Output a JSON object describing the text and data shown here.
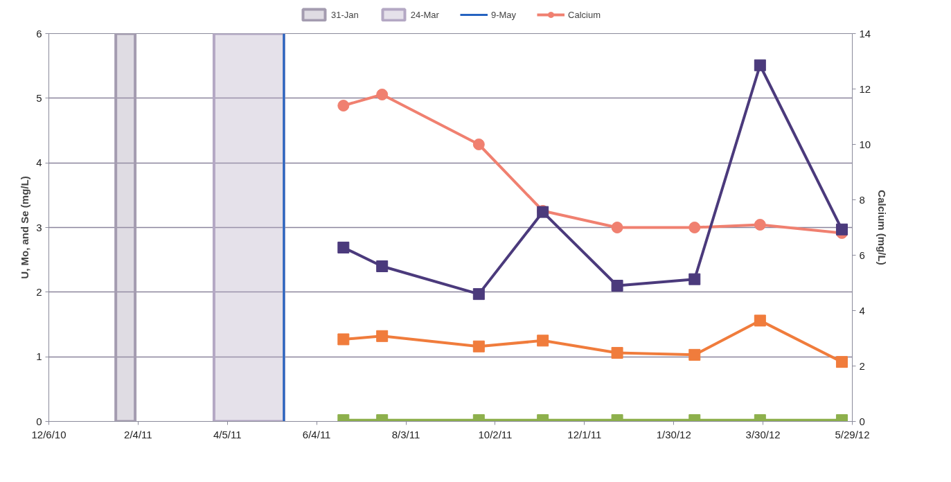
{
  "chart_data": {
    "type": "line",
    "x": [
      "2011-06-22",
      "2011-07-18",
      "2011-09-21",
      "2011-11-03",
      "2011-12-23",
      "2012-02-13",
      "2012-03-28",
      "2012-05-22"
    ],
    "series": [
      {
        "color": "#4b3a7c",
        "marker": "square",
        "values": [
          2.69,
          2.4,
          1.97,
          3.24,
          2.1,
          2.2,
          5.51,
          2.97
        ]
      },
      {
        "color": "#f07c3c",
        "marker": "square",
        "values": [
          1.27,
          1.32,
          1.16,
          1.25,
          1.06,
          1.03,
          1.56,
          0.92
        ]
      },
      {
        "color": "#8db04c",
        "marker": "square",
        "values": [
          0.02,
          0.02,
          0.02,
          0.02,
          0.02,
          0.02,
          0.02,
          0.02
        ]
      },
      {
        "name": "Calcium",
        "color": "#f08070",
        "marker": "circle",
        "axis": "y2",
        "values": [
          11.4,
          11.8,
          10.0,
          7.6,
          7.0,
          7.0,
          7.1,
          6.8
        ]
      }
    ],
    "ylabel": "U, Mo, and Se (mg/L)",
    "y2label": "Calcium (mg/L)",
    "xlim": [
      "2010-12-06",
      "2012-05-29"
    ],
    "xticks": [
      {
        "value": "2010-12-06",
        "label": "12/6/10"
      },
      {
        "value": "2011-02-04",
        "label": "2/4/11"
      },
      {
        "value": "2011-04-05",
        "label": "4/5/11"
      },
      {
        "value": "2011-06-04",
        "label": "6/4/11"
      },
      {
        "value": "2011-08-03",
        "label": "8/3/11"
      },
      {
        "value": "2011-10-02",
        "label": "10/2/11"
      },
      {
        "value": "2011-12-01",
        "label": "12/1/11"
      },
      {
        "value": "2012-01-30",
        "label": "1/30/12"
      },
      {
        "value": "2012-03-30",
        "label": "3/30/12"
      },
      {
        "value": "2012-05-29",
        "label": "5/29/12"
      }
    ],
    "ylim": [
      0,
      6
    ],
    "yticks": [
      0,
      1,
      2,
      3,
      4,
      5,
      6
    ],
    "y2lim": [
      0,
      14
    ],
    "y2ticks": [
      0,
      2,
      4,
      6,
      8,
      10,
      12,
      14
    ],
    "bands": [
      {
        "axis": "x",
        "from": "2011-01-20",
        "to": "2011-02-02",
        "label": "31-Jan",
        "color": "#a49cb0"
      },
      {
        "axis": "x",
        "from": "2011-03-27",
        "to": "2011-05-13",
        "label": "24-Mar",
        "color": "#b4a8c4"
      }
    ],
    "ref_lines": [
      {
        "axis": "x",
        "value": "2011-05-13",
        "label": "9-May",
        "color": "#2563c0"
      }
    ],
    "grid": "y",
    "legend": "top",
    "line_style": "solid"
  }
}
